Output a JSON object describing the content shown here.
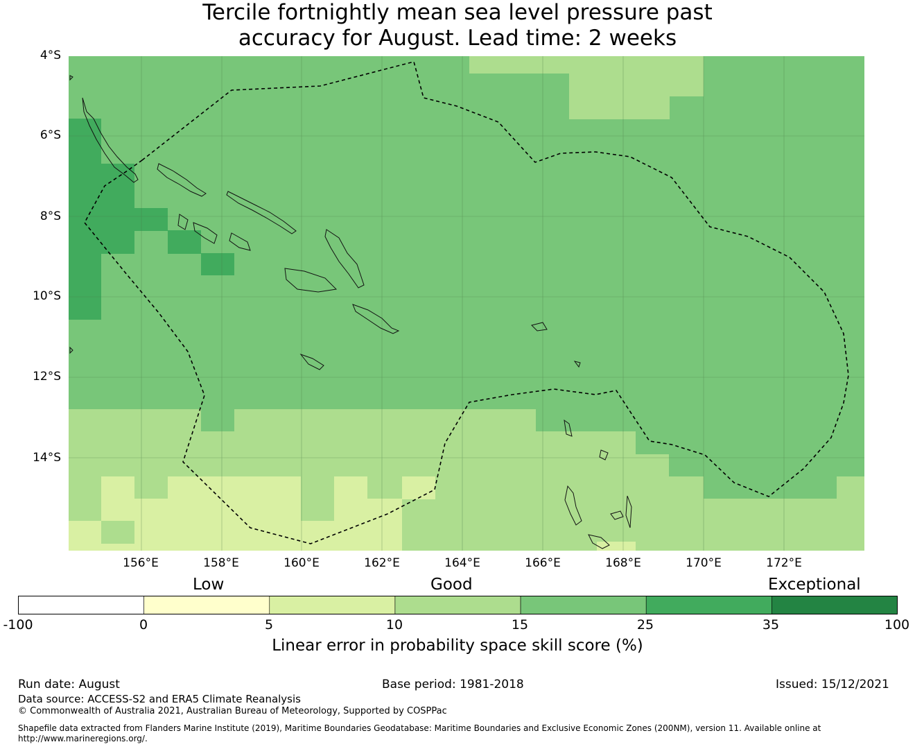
{
  "title_line1": "Tercile fortnightly mean sea level pressure past",
  "title_line2": "accuracy for August. Lead time: 2 weeks",
  "map": {
    "lat_labels": [
      "4°S",
      "6°S",
      "8°S",
      "10°S",
      "12°S",
      "14°S"
    ],
    "lon_labels": [
      "156°E",
      "158°E",
      "160°E",
      "162°E",
      "164°E",
      "166°E",
      "168°E",
      "170°E",
      "172°E"
    ],
    "lon_range": [
      154.2,
      174.0
    ],
    "lat_range": [
      -16.3,
      -4.0
    ],
    "colors": {
      "c1": "#ffffcc",
      "c2": "#d9f0a3",
      "c3": "#addd8e",
      "c4": "#78c679",
      "c5": "#41ab5d",
      "c6": "#238443"
    }
  },
  "colorbar": {
    "category_labels": [
      "Low",
      "Good",
      "Exceptional"
    ],
    "ticks": [
      "-100",
      "0",
      "5",
      "10",
      "15",
      "25",
      "35",
      "100"
    ],
    "colors": [
      "#ffffff",
      "#ffffcc",
      "#d9f0a3",
      "#addd8e",
      "#78c679",
      "#41ab5d",
      "#238443"
    ],
    "label": "Linear error in probability space skill score (%)"
  },
  "footer": {
    "run_date": "Run date: August",
    "base_period": "Base period: 1981-2018",
    "issued": "Issued: 15/12/2021",
    "data_source": "Data source: ACCESS-S2 and ERA5 Climate Reanalysis",
    "copyright": "© Commonwealth of Australia 2021, Australian Bureau of Meteorology, Supported by COSPPac",
    "shapefile_line1": "Shapefile data extracted from Flanders Marine Institute (2019), Maritime Boundaries Geodatabase: Maritime Boundaries and Exclusive Economic Zones (200NM), version 11. Available online at",
    "shapefile_line2": "http://www.marineregions.org/."
  }
}
